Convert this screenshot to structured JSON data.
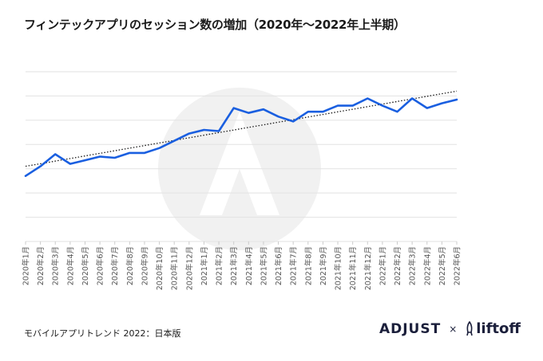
{
  "title": "フィンテックアプリのセッション数の増加（2020年〜2022年上半期）",
  "footer": "モバイルアプリトレンド 2022：日本版",
  "logos": {
    "adjust": "ADJUST",
    "separator": "×",
    "liftoff": "liftoff"
  },
  "colors": {
    "line": "#1a5fe0",
    "trend": "#1a1a1a",
    "grid": "#e2e2e2",
    "watermark": "#f1f1f1"
  },
  "chart_data": {
    "type": "line",
    "title": "フィンテックアプリのセッション数の増加（2020年〜2022年上半期）",
    "categories": [
      "2020年1月",
      "2020年2月",
      "2020年3月",
      "2020年4月",
      "2020年5月",
      "2020年6月",
      "2020年7月",
      "2020年8月",
      "2020年9月",
      "2020年10月",
      "2020年11月",
      "2020年12月",
      "2021年1月",
      "2021年2月",
      "2021年3月",
      "2021年4月",
      "2021年5月",
      "2021年6月",
      "2021年7月",
      "2021年8月",
      "2021年9月",
      "2021年10月",
      "2021年11月",
      "2021年12月",
      "2022年1月",
      "2022年2月",
      "2022年3月",
      "2022年4月",
      "2022年5月",
      "2022年6月"
    ],
    "series": [
      {
        "values": [
          27,
          31,
          36,
          32,
          33.5,
          35,
          34.5,
          36.5,
          36.5,
          38.5,
          41.5,
          44.5,
          46,
          45.5,
          55,
          53,
          54.5,
          51.5,
          49.5,
          53.5,
          53.5,
          56,
          56,
          59,
          56,
          53.5,
          59,
          55,
          57,
          58.5
        ]
      }
    ],
    "trendline": {
      "style": "dotted",
      "start": 31,
      "end": 62
    },
    "ylim": [
      0,
      70
    ],
    "grid": true,
    "y_tick_labels": false,
    "legend": "none"
  }
}
